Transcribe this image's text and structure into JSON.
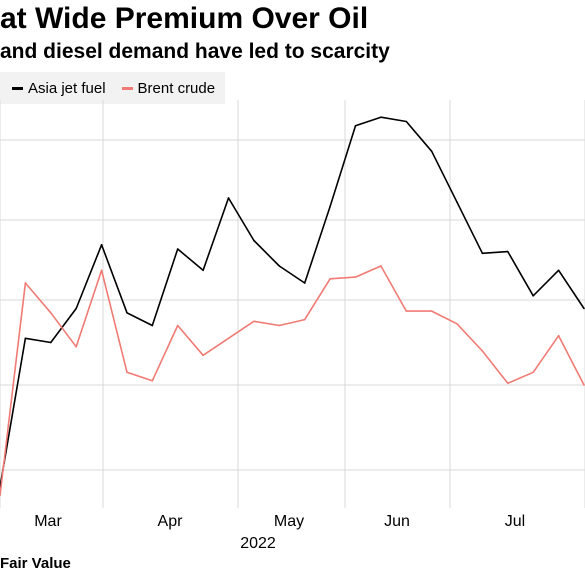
{
  "title": "at Wide Premium Over Oil",
  "subtitle": "and diesel demand have led to scarcity",
  "source": "Fair Value",
  "colors": {
    "jet": "#000000",
    "brent": "#f07b74",
    "grid": "#d9d9d9",
    "legend_bg": "#f2f2f2"
  },
  "chart_data": {
    "type": "line",
    "title": "at Wide Premium Over Oil",
    "subtitle": "and diesel demand have led to scarcity",
    "xlabel": "",
    "ylabel": "",
    "x_ticks": [
      "Mar",
      "Apr",
      "May",
      "Jun",
      "Jul"
    ],
    "x_year_label": "2022",
    "grid": true,
    "legend_position": "top-left",
    "x": [
      "2022-02-18",
      "2022-02-25",
      "2022-03-04",
      "2022-03-11",
      "2022-03-18",
      "2022-03-25",
      "2022-04-01",
      "2022-04-08",
      "2022-04-15",
      "2022-04-22",
      "2022-04-29",
      "2022-05-06",
      "2022-05-13",
      "2022-05-20",
      "2022-05-27",
      "2022-06-03",
      "2022-06-10",
      "2022-06-17",
      "2022-06-24",
      "2022-07-01",
      "2022-07-08",
      "2022-07-15",
      "2022-07-22",
      "2022-07-29"
    ],
    "series": [
      {
        "name": "Asia jet fuel",
        "color": "#000000",
        "values": [
          0.8,
          2.55,
          2.5,
          2.9,
          3.65,
          2.85,
          2.7,
          3.6,
          3.35,
          4.2,
          3.7,
          3.4,
          3.2,
          4.1,
          5.05,
          5.15,
          5.1,
          4.75,
          4.15,
          3.55,
          3.57,
          3.05,
          3.35,
          2.9
        ]
      },
      {
        "name": "Brent crude",
        "color": "#f07b74",
        "values": [
          0.7,
          3.2,
          2.85,
          2.45,
          3.35,
          2.15,
          2.05,
          2.7,
          2.35,
          2.55,
          2.75,
          2.7,
          2.77,
          3.25,
          3.27,
          3.4,
          2.87,
          2.87,
          2.72,
          2.4,
          2.02,
          2.15,
          2.58,
          2.0
        ]
      }
    ]
  }
}
